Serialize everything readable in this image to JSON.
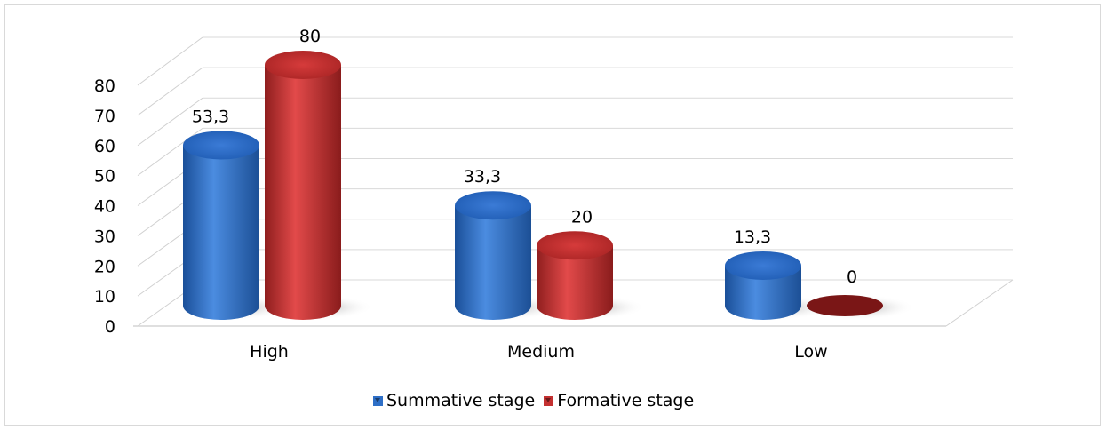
{
  "chart_data": {
    "type": "bar",
    "categories": [
      "High",
      "Medium",
      "Low"
    ],
    "series": [
      {
        "name": "Summative stage",
        "values": [
          53.3,
          33.3,
          13.3
        ],
        "labels": [
          "53,3",
          "33,3",
          "13,3"
        ],
        "color": "#2e6fc7"
      },
      {
        "name": "Formative stage",
        "values": [
          80,
          20,
          0
        ],
        "labels": [
          "80",
          "20",
          "0"
        ],
        "color": "#c43131"
      }
    ],
    "ylim": [
      0,
      80
    ],
    "yticks": [
      "0",
      "10",
      "20",
      "30",
      "40",
      "50",
      "60",
      "70",
      "80"
    ],
    "title": "",
    "xlabel": "",
    "ylabel": "",
    "grid": true,
    "legend": "bottom",
    "style": "3d-cylinder"
  }
}
